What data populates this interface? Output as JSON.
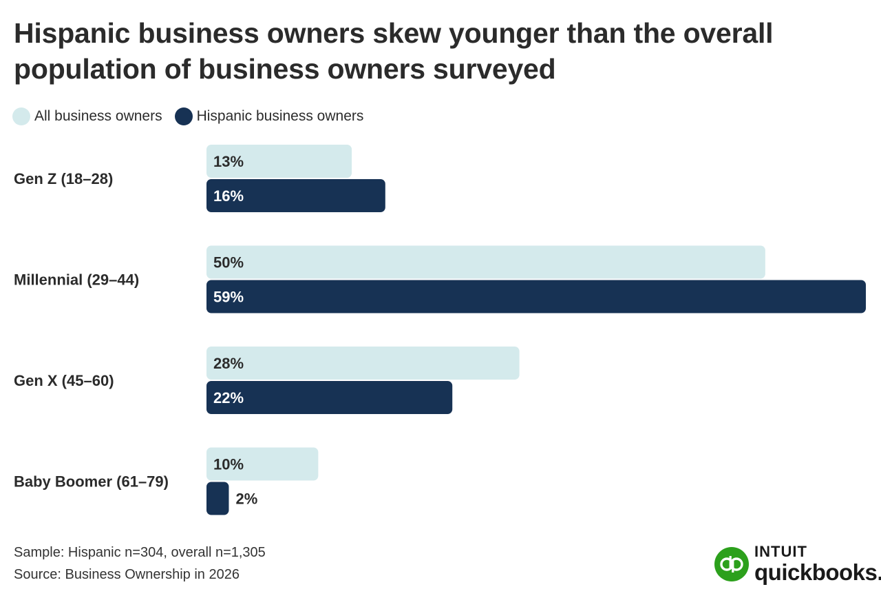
{
  "colors": {
    "all_owners": "#d4eaec",
    "hispanic_owners": "#173254",
    "label_dark": "#2b2b2b",
    "label_light": "#ffffff",
    "brand_green": "#2ca01c"
  },
  "chart_data": {
    "type": "bar",
    "orientation": "horizontal",
    "title": "Hispanic business owners skew younger than the overall population of business owners surveyed",
    "categories": [
      "Gen Z (18–28)",
      "Millennial (29–44)",
      "Gen X (45–60)",
      "Baby Boomer (61–79)"
    ],
    "series": [
      {
        "name": "All business owners",
        "values": [
          13,
          50,
          28,
          10
        ],
        "labels": [
          "13%",
          "50%",
          "28%",
          "10%"
        ]
      },
      {
        "name": "Hispanic business owners",
        "values": [
          16,
          59,
          22,
          2
        ],
        "labels": [
          "16%",
          "59%",
          "22%",
          "2%"
        ]
      }
    ],
    "xlim": [
      0,
      59
    ],
    "legend": "top-left",
    "grid": false
  },
  "footer": {
    "sample": "Sample: Hispanic n=304, overall n=1,305",
    "source": "Source: Business Ownership in 2026"
  },
  "logo": {
    "brand": "INTUIT",
    "product": "quickbooks.",
    "icon": "quickbooks-logo-icon"
  }
}
